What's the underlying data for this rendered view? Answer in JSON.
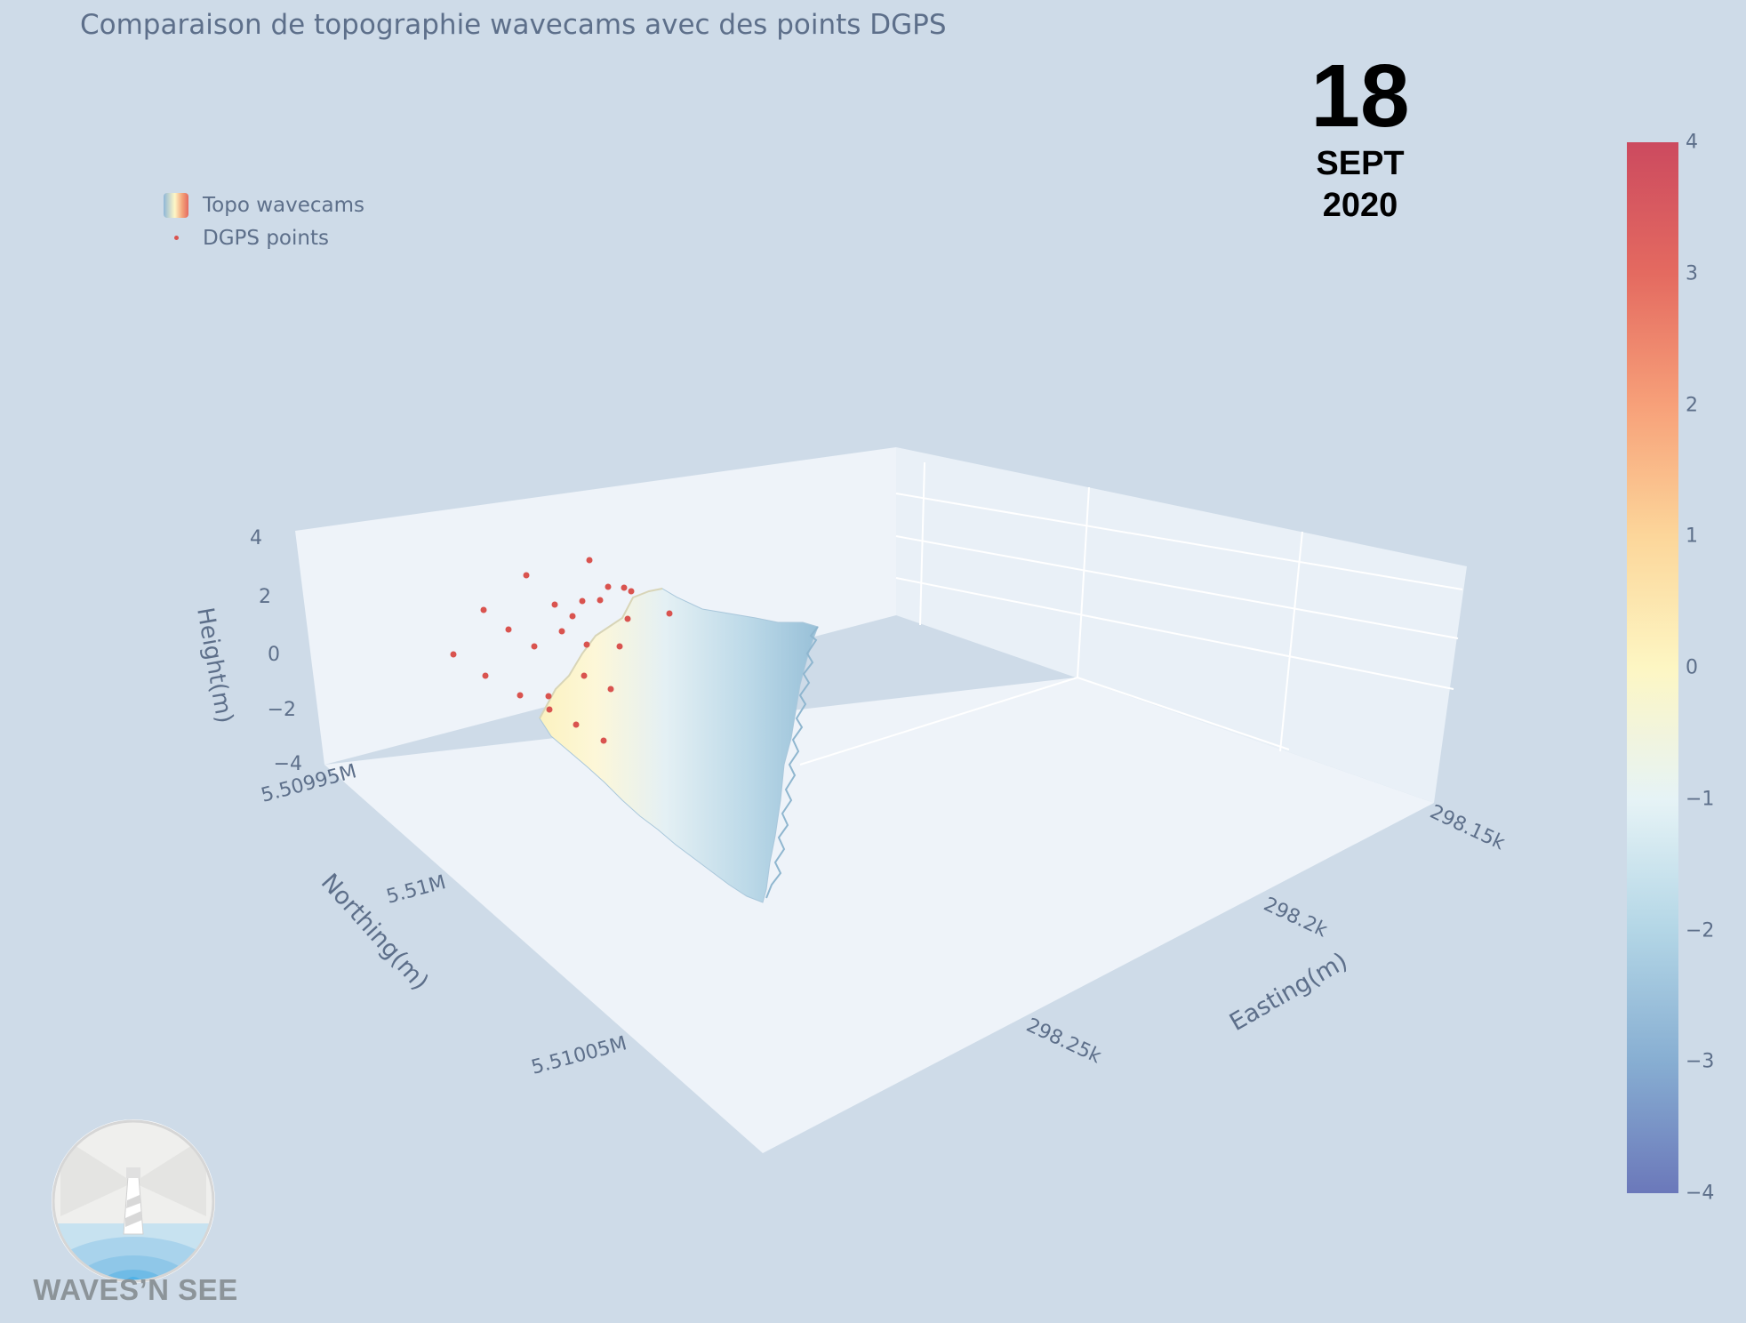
{
  "title": "Comparaison de topographie wavecams avec des points DGPS",
  "date": {
    "day": "18",
    "month": "SEPT",
    "year": "2020"
  },
  "legend": {
    "items": [
      "Topo wavecams",
      "DGPS points"
    ]
  },
  "brand": {
    "name": "WAVES’N SEE"
  },
  "colors": {
    "surface_low": "#6b7bbd",
    "surface_high": "#cc4a5f",
    "points": "#d9534f",
    "background": "#cedbe8"
  },
  "chart_data": {
    "type": "surface",
    "title": "Comparaison de topographie wavecams avec des points DGPS",
    "xlabel": "Easting(m)",
    "ylabel": "Northing(m)",
    "zlabel": "Height(m)",
    "x_ticks": [
      "298.15k",
      "298.2k",
      "298.25k"
    ],
    "y_ticks": [
      "5.50995M",
      "5.51M",
      "5.51005M"
    ],
    "z_ticks": [
      "4",
      "2",
      "0",
      "−2",
      "−4"
    ],
    "zlim": [
      -4,
      4
    ],
    "colorscale": "RdYlBu (reversed)",
    "colorbar": {
      "range": [
        -4,
        4
      ],
      "ticks": [
        "4",
        "3",
        "2",
        "1",
        "0",
        "−1",
        "−2",
        "−3",
        "−4"
      ]
    },
    "series": [
      {
        "name": "Topo wavecams",
        "type": "surface",
        "z_range_approx": [
          -3,
          1
        ]
      },
      {
        "name": "DGPS points",
        "type": "scatter3d",
        "count_approx": 26
      }
    ],
    "grid": true,
    "legend_position": "top-left"
  }
}
